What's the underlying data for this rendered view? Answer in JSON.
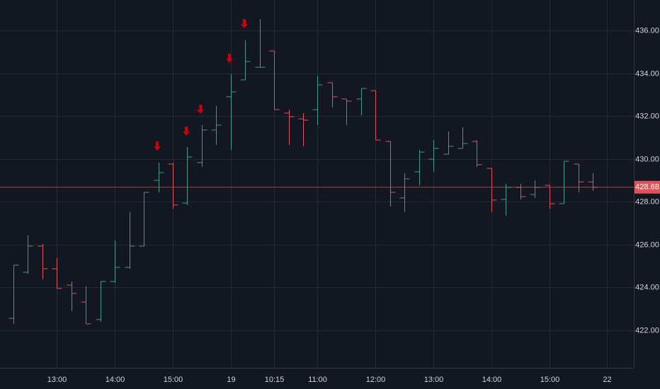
{
  "chart_data": {
    "type": "ohlc",
    "categories": [
      null,
      null,
      null,
      "13:00",
      null,
      null,
      null,
      "14:00",
      null,
      null,
      null,
      "15:00",
      null,
      null,
      null,
      "19",
      null,
      null,
      "10:15",
      null,
      null,
      "11:00",
      null,
      null,
      null,
      "12:00",
      null,
      null,
      null,
      "13:00",
      null,
      null,
      null,
      "14:00",
      null,
      null,
      null,
      "15:00",
      null,
      null,
      null,
      "22"
    ],
    "open": [
      422.56,
      424.71,
      425.93,
      424.87,
      424.11,
      423.32,
      422.5,
      424.28,
      424.94,
      425.93,
      429.0,
      429.76,
      427.94,
      429.83,
      431.35,
      432.9,
      433.69,
      434.28,
      435.04,
      432.14,
      431.87,
      432.3,
      433.56,
      432.8,
      432.8,
      433.19,
      430.82,
      428.18,
      429.4,
      429.99,
      430.22,
      430.49,
      430.82,
      429.56,
      428.11,
      428.67,
      428.34,
      428.77,
      427.91,
      429.76,
      428.93,
      null
    ],
    "high": [
      425.04,
      426.43,
      426.03,
      425.37,
      424.28,
      424.05,
      424.28,
      426.19,
      427.52,
      428.44,
      429.83,
      429.83,
      430.55,
      431.58,
      432.47,
      433.95,
      435.54,
      436.53,
      435.04,
      432.3,
      432.14,
      433.89,
      433.56,
      432.8,
      433.29,
      433.19,
      430.82,
      429.33,
      430.42,
      430.88,
      431.28,
      431.48,
      430.88,
      429.56,
      428.84,
      428.84,
      429.0,
      428.77,
      429.89,
      429.76,
      429.33,
      null
    ],
    "low": [
      422.3,
      424.64,
      424.38,
      423.95,
      422.89,
      422.3,
      422.4,
      424.21,
      424.87,
      425.93,
      428.44,
      427.68,
      427.85,
      429.63,
      430.65,
      430.42,
      433.69,
      434.28,
      432.3,
      430.65,
      430.59,
      431.58,
      432.4,
      431.58,
      432.04,
      430.88,
      427.78,
      427.52,
      428.77,
      429.4,
      430.22,
      430.49,
      429.63,
      427.52,
      427.35,
      428.11,
      428.18,
      427.68,
      427.91,
      428.44,
      428.51,
      null
    ],
    "close": [
      425.04,
      425.93,
      424.87,
      423.95,
      423.72,
      422.3,
      424.28,
      424.94,
      425.93,
      428.44,
      429.36,
      427.85,
      430.09,
      431.35,
      431.58,
      433.13,
      434.55,
      434.28,
      432.3,
      431.97,
      431.81,
      433.46,
      432.9,
      432.7,
      433.29,
      430.88,
      428.44,
      429.07,
      430.32,
      430.49,
      430.59,
      430.72,
      429.73,
      428.08,
      428.67,
      428.24,
      428.67,
      427.91,
      429.89,
      428.93,
      428.68,
      null
    ],
    "up_color": "#3d9c84",
    "down_color": "#e0535c",
    "last_price": 428.68,
    "ylim": [
      420.25,
      437.42
    ],
    "yticks": [
      {
        "value": 422,
        "label": "422.00"
      },
      {
        "value": 424,
        "label": "424.00"
      },
      {
        "value": 426,
        "label": "426.00"
      },
      {
        "value": 428,
        "label": "428.00"
      },
      {
        "value": 430,
        "label": "430.00"
      },
      {
        "value": 432,
        "label": "432.00"
      },
      {
        "value": 434,
        "label": "434.00"
      },
      {
        "value": 436,
        "label": "436.00"
      }
    ],
    "grid": true
  }
}
